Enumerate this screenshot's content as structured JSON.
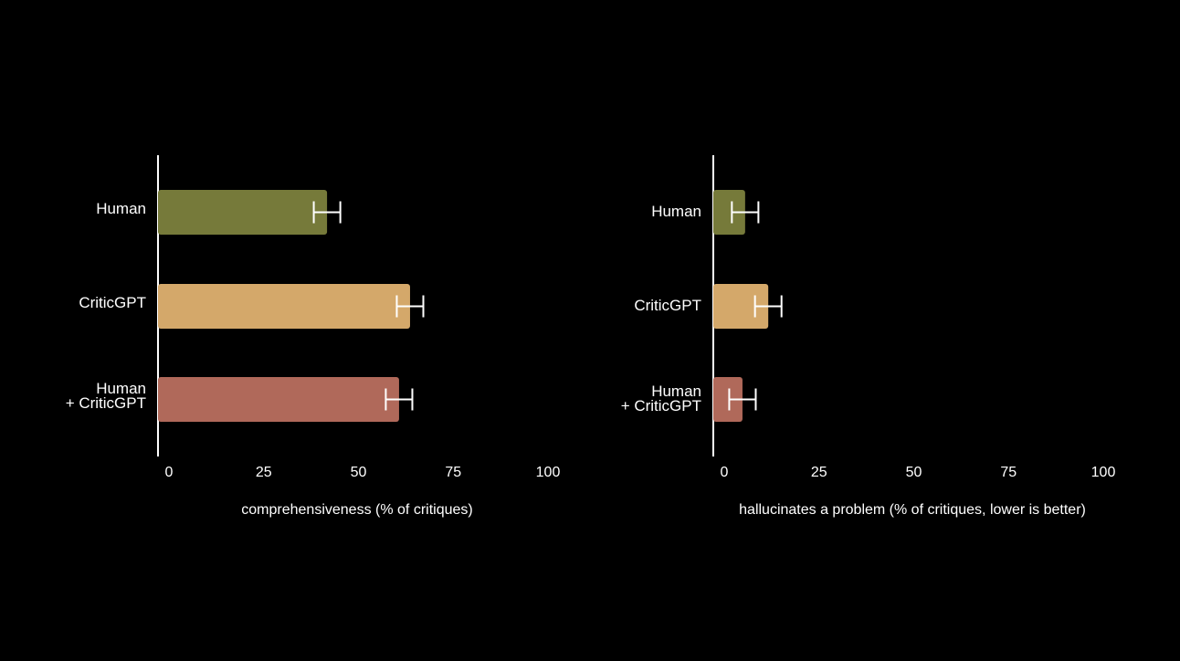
{
  "chart_data": [
    {
      "type": "bar",
      "orientation": "horizontal",
      "categories": [
        "Human",
        "CriticGPT",
        "Human\n+ CriticGPT"
      ],
      "values": [
        44.6,
        66.5,
        63.6
      ],
      "errors": [
        3.5,
        3.5,
        3.5
      ],
      "colors": [
        "#767a3a",
        "#d4a86a",
        "#b0695a"
      ],
      "xlim": [
        0,
        100
      ],
      "xticks": [
        0,
        25,
        50,
        75,
        100
      ],
      "xlabel": "comprehensiveness (% of critiques)"
    },
    {
      "type": "bar",
      "orientation": "horizontal",
      "categories": [
        "Human",
        "CriticGPT",
        "Human\n+ CriticGPT"
      ],
      "values": [
        8.4,
        14.5,
        7.7
      ],
      "errors": [
        3.5,
        3.5,
        3.5
      ],
      "colors": [
        "#767a3a",
        "#d4a86a",
        "#b0695a"
      ],
      "xlim": [
        0,
        100
      ],
      "xticks": [
        0,
        25,
        50,
        75,
        100
      ],
      "xlabel": "hallucinates a problem (% of critiques, lower is better)"
    }
  ]
}
